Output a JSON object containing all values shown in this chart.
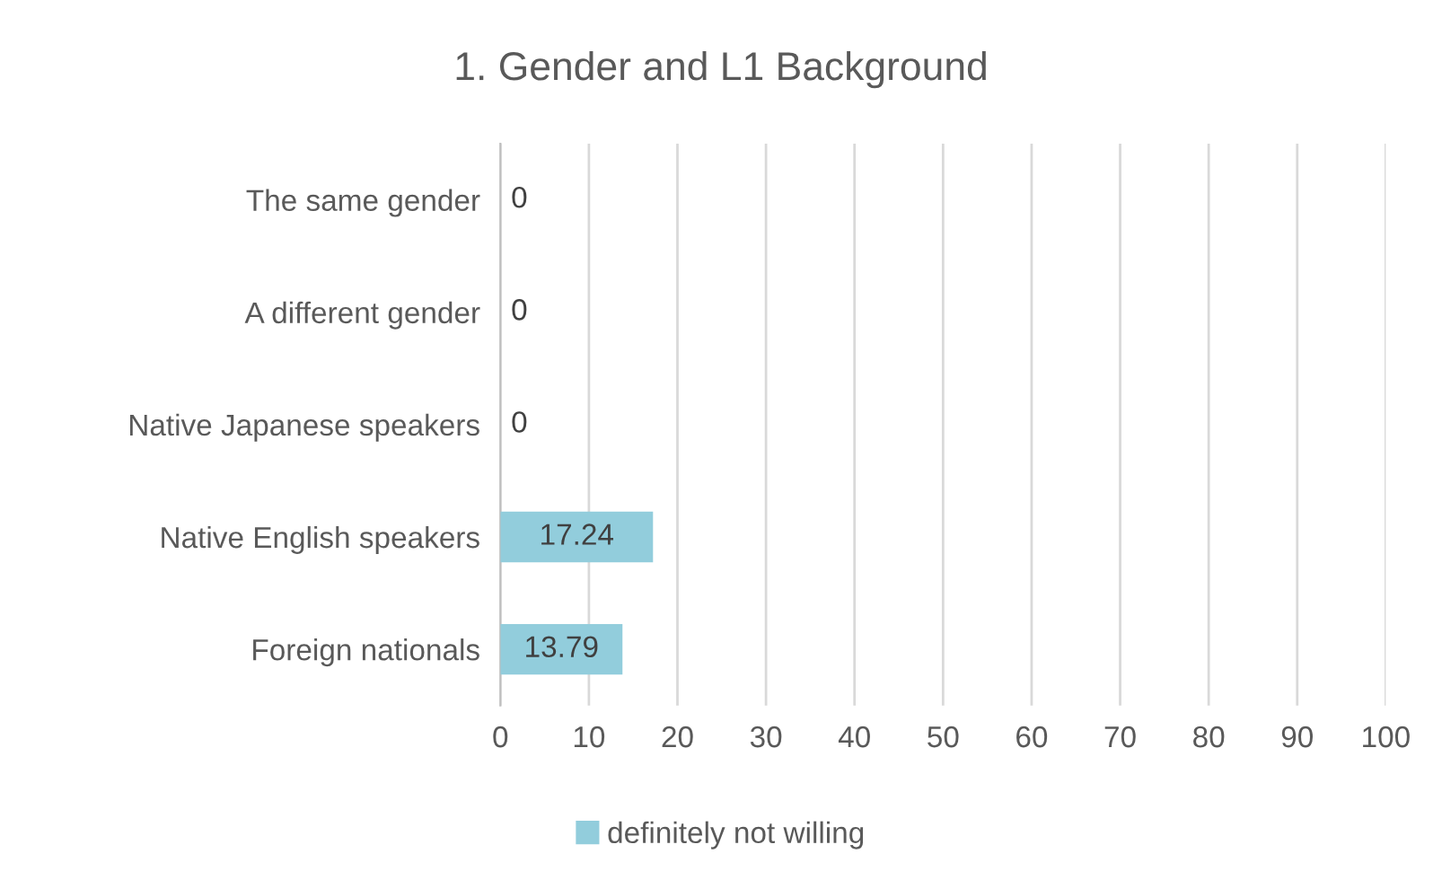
{
  "chart_data": {
    "type": "bar",
    "orientation": "horizontal",
    "title": "1. Gender and L1 Background",
    "categories": [
      "The same gender",
      "A different gender",
      "Native Japanese speakers",
      "Native English speakers",
      "Foreign nationals"
    ],
    "series": [
      {
        "name": "definitely not willing",
        "color": "#92cddc",
        "values": [
          0,
          0,
          0,
          17.24,
          13.79
        ]
      }
    ],
    "xlim": [
      0,
      100
    ],
    "xticks": [
      0,
      10,
      20,
      30,
      40,
      50,
      60,
      70,
      80,
      90,
      100
    ],
    "grid": "x",
    "legend": "bottom",
    "data_labels": true
  }
}
